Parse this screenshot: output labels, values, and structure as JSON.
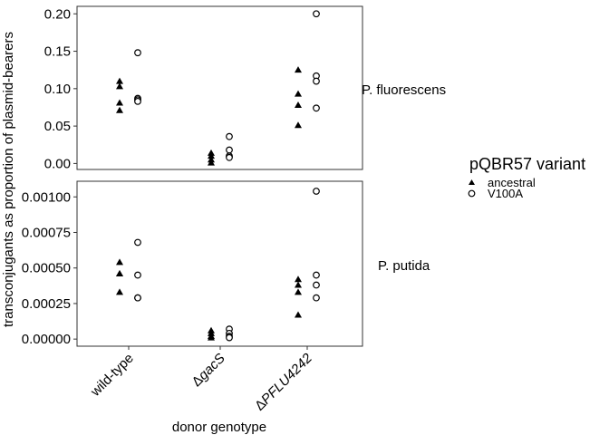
{
  "chart_data": {
    "type": "scatter",
    "xlabel": "donor genotype",
    "ylabel": "transconjugants as proportion of plasmid-bearers",
    "categories": [
      {
        "prefix": "",
        "italic": "wild-type"
      },
      {
        "prefix": "Δ",
        "italic": "gacS"
      },
      {
        "prefix": "Δ",
        "italic": "PFLU4242"
      }
    ],
    "legend": {
      "title": "pQBR57 variant",
      "entries": [
        {
          "key": "ancestral",
          "label": "ancestral",
          "shape": "filled-triangle"
        },
        {
          "key": "v100a",
          "label": "V100A",
          "shape": "open-circle"
        }
      ]
    },
    "panels": [
      {
        "label": "P. fluorescens",
        "ylim": [
          -0.008,
          0.21
        ],
        "yticks": [
          0.0,
          0.05,
          0.1,
          0.15,
          0.2
        ],
        "ytick_labels": [
          "0.00",
          "0.05",
          "0.10",
          "0.15",
          "0.20"
        ],
        "series": [
          {
            "key": "ancestral",
            "values": [
              [
                0.11,
                0.103,
                0.081,
                0.071
              ],
              [
                0.014,
                0.01,
                0.005,
                0.001
              ],
              [
                0.125,
                0.093,
                0.078,
                0.051
              ]
            ]
          },
          {
            "key": "v100a",
            "values": [
              [
                0.148,
                0.087,
                0.085,
                0.083
              ],
              [
                0.036,
                0.018,
                0.01,
                0.008
              ],
              [
                0.2,
                0.117,
                0.11,
                0.074
              ]
            ]
          }
        ]
      },
      {
        "label": "P. putida",
        "ylim": [
          -5e-05,
          0.00111
        ],
        "yticks": [
          0.0,
          0.00025,
          0.0005,
          0.00075,
          0.001
        ],
        "ytick_labels": [
          "0.00000",
          "0.00025",
          "0.00050",
          "0.00075",
          "0.00100"
        ],
        "series": [
          {
            "key": "ancestral",
            "values": [
              [
                0.00054,
                0.00046,
                0.00046,
                0.00033
              ],
              [
                6e-05,
                4e-05,
                2e-05,
                1e-05
              ],
              [
                0.00042,
                0.00038,
                0.00033,
                0.00017
              ]
            ]
          },
          {
            "key": "v100a",
            "values": [
              [
                0.00068,
                0.00045,
                0.00029,
                0.00029
              ],
              [
                7e-05,
                4e-05,
                2e-05,
                1e-05
              ],
              [
                0.00104,
                0.00045,
                0.00038,
                0.00029
              ]
            ]
          }
        ]
      }
    ]
  }
}
